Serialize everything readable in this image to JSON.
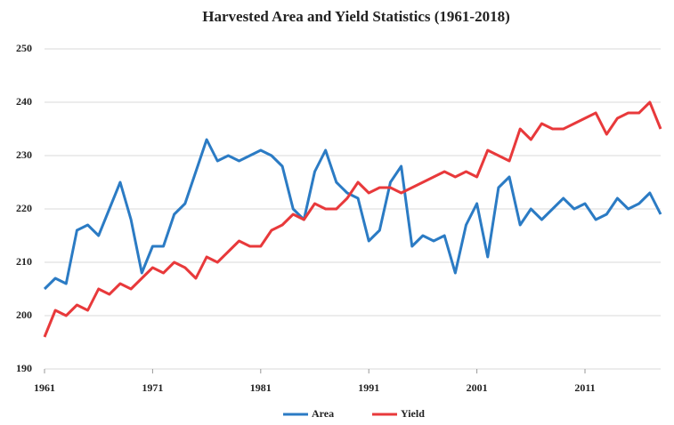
{
  "chart_data": {
    "type": "line",
    "title": "Harvested Area and Yield Statistics (1961-2018)",
    "x": [
      1961,
      1962,
      1963,
      1964,
      1965,
      1966,
      1967,
      1968,
      1969,
      1970,
      1971,
      1972,
      1973,
      1974,
      1975,
      1976,
      1977,
      1978,
      1979,
      1980,
      1981,
      1982,
      1983,
      1984,
      1985,
      1986,
      1987,
      1988,
      1989,
      1990,
      1991,
      1992,
      1993,
      1994,
      1995,
      1996,
      1997,
      1998,
      1999,
      2000,
      2001,
      2002,
      2003,
      2004,
      2005,
      2006,
      2007,
      2008,
      2009,
      2010,
      2011,
      2012,
      2013,
      2014,
      2015,
      2016,
      2017,
      2018
    ],
    "series": [
      {
        "name": "Area",
        "color": "#2b7bc4",
        "values": [
          205,
          207,
          206,
          216,
          217,
          215,
          220,
          225,
          218,
          208,
          213,
          213,
          219,
          221,
          227,
          233,
          229,
          230,
          229,
          230,
          231,
          230,
          228,
          220,
          218,
          227,
          231,
          225,
          223,
          222,
          214,
          216,
          225,
          228,
          213,
          215,
          214,
          215,
          208,
          217,
          221,
          211,
          224,
          226,
          217,
          220,
          218,
          220,
          222,
          220,
          221,
          218,
          219,
          222,
          220,
          221,
          223,
          219
        ]
      },
      {
        "name": "Yield",
        "color": "#e8393b",
        "values": [
          196,
          201,
          200,
          202,
          201,
          205,
          204,
          206,
          205,
          207,
          209,
          208,
          210,
          209,
          207,
          211,
          210,
          212,
          214,
          213,
          213,
          216,
          217,
          219,
          218,
          221,
          220,
          220,
          222,
          225,
          223,
          224,
          224,
          223,
          224,
          225,
          226,
          227,
          226,
          227,
          226,
          231,
          230,
          229,
          235,
          233,
          236,
          235,
          235,
          236,
          237,
          238,
          234,
          237,
          238,
          238,
          240,
          235
        ]
      }
    ],
    "xlim": [
      1961,
      2018
    ],
    "xticks": [
      1961,
      1971,
      1981,
      1991,
      2001,
      2011
    ],
    "ylim": [
      190,
      250
    ],
    "yticks": [
      190,
      200,
      210,
      220,
      230,
      240,
      250
    ],
    "grid": true,
    "legend": "bottom"
  }
}
